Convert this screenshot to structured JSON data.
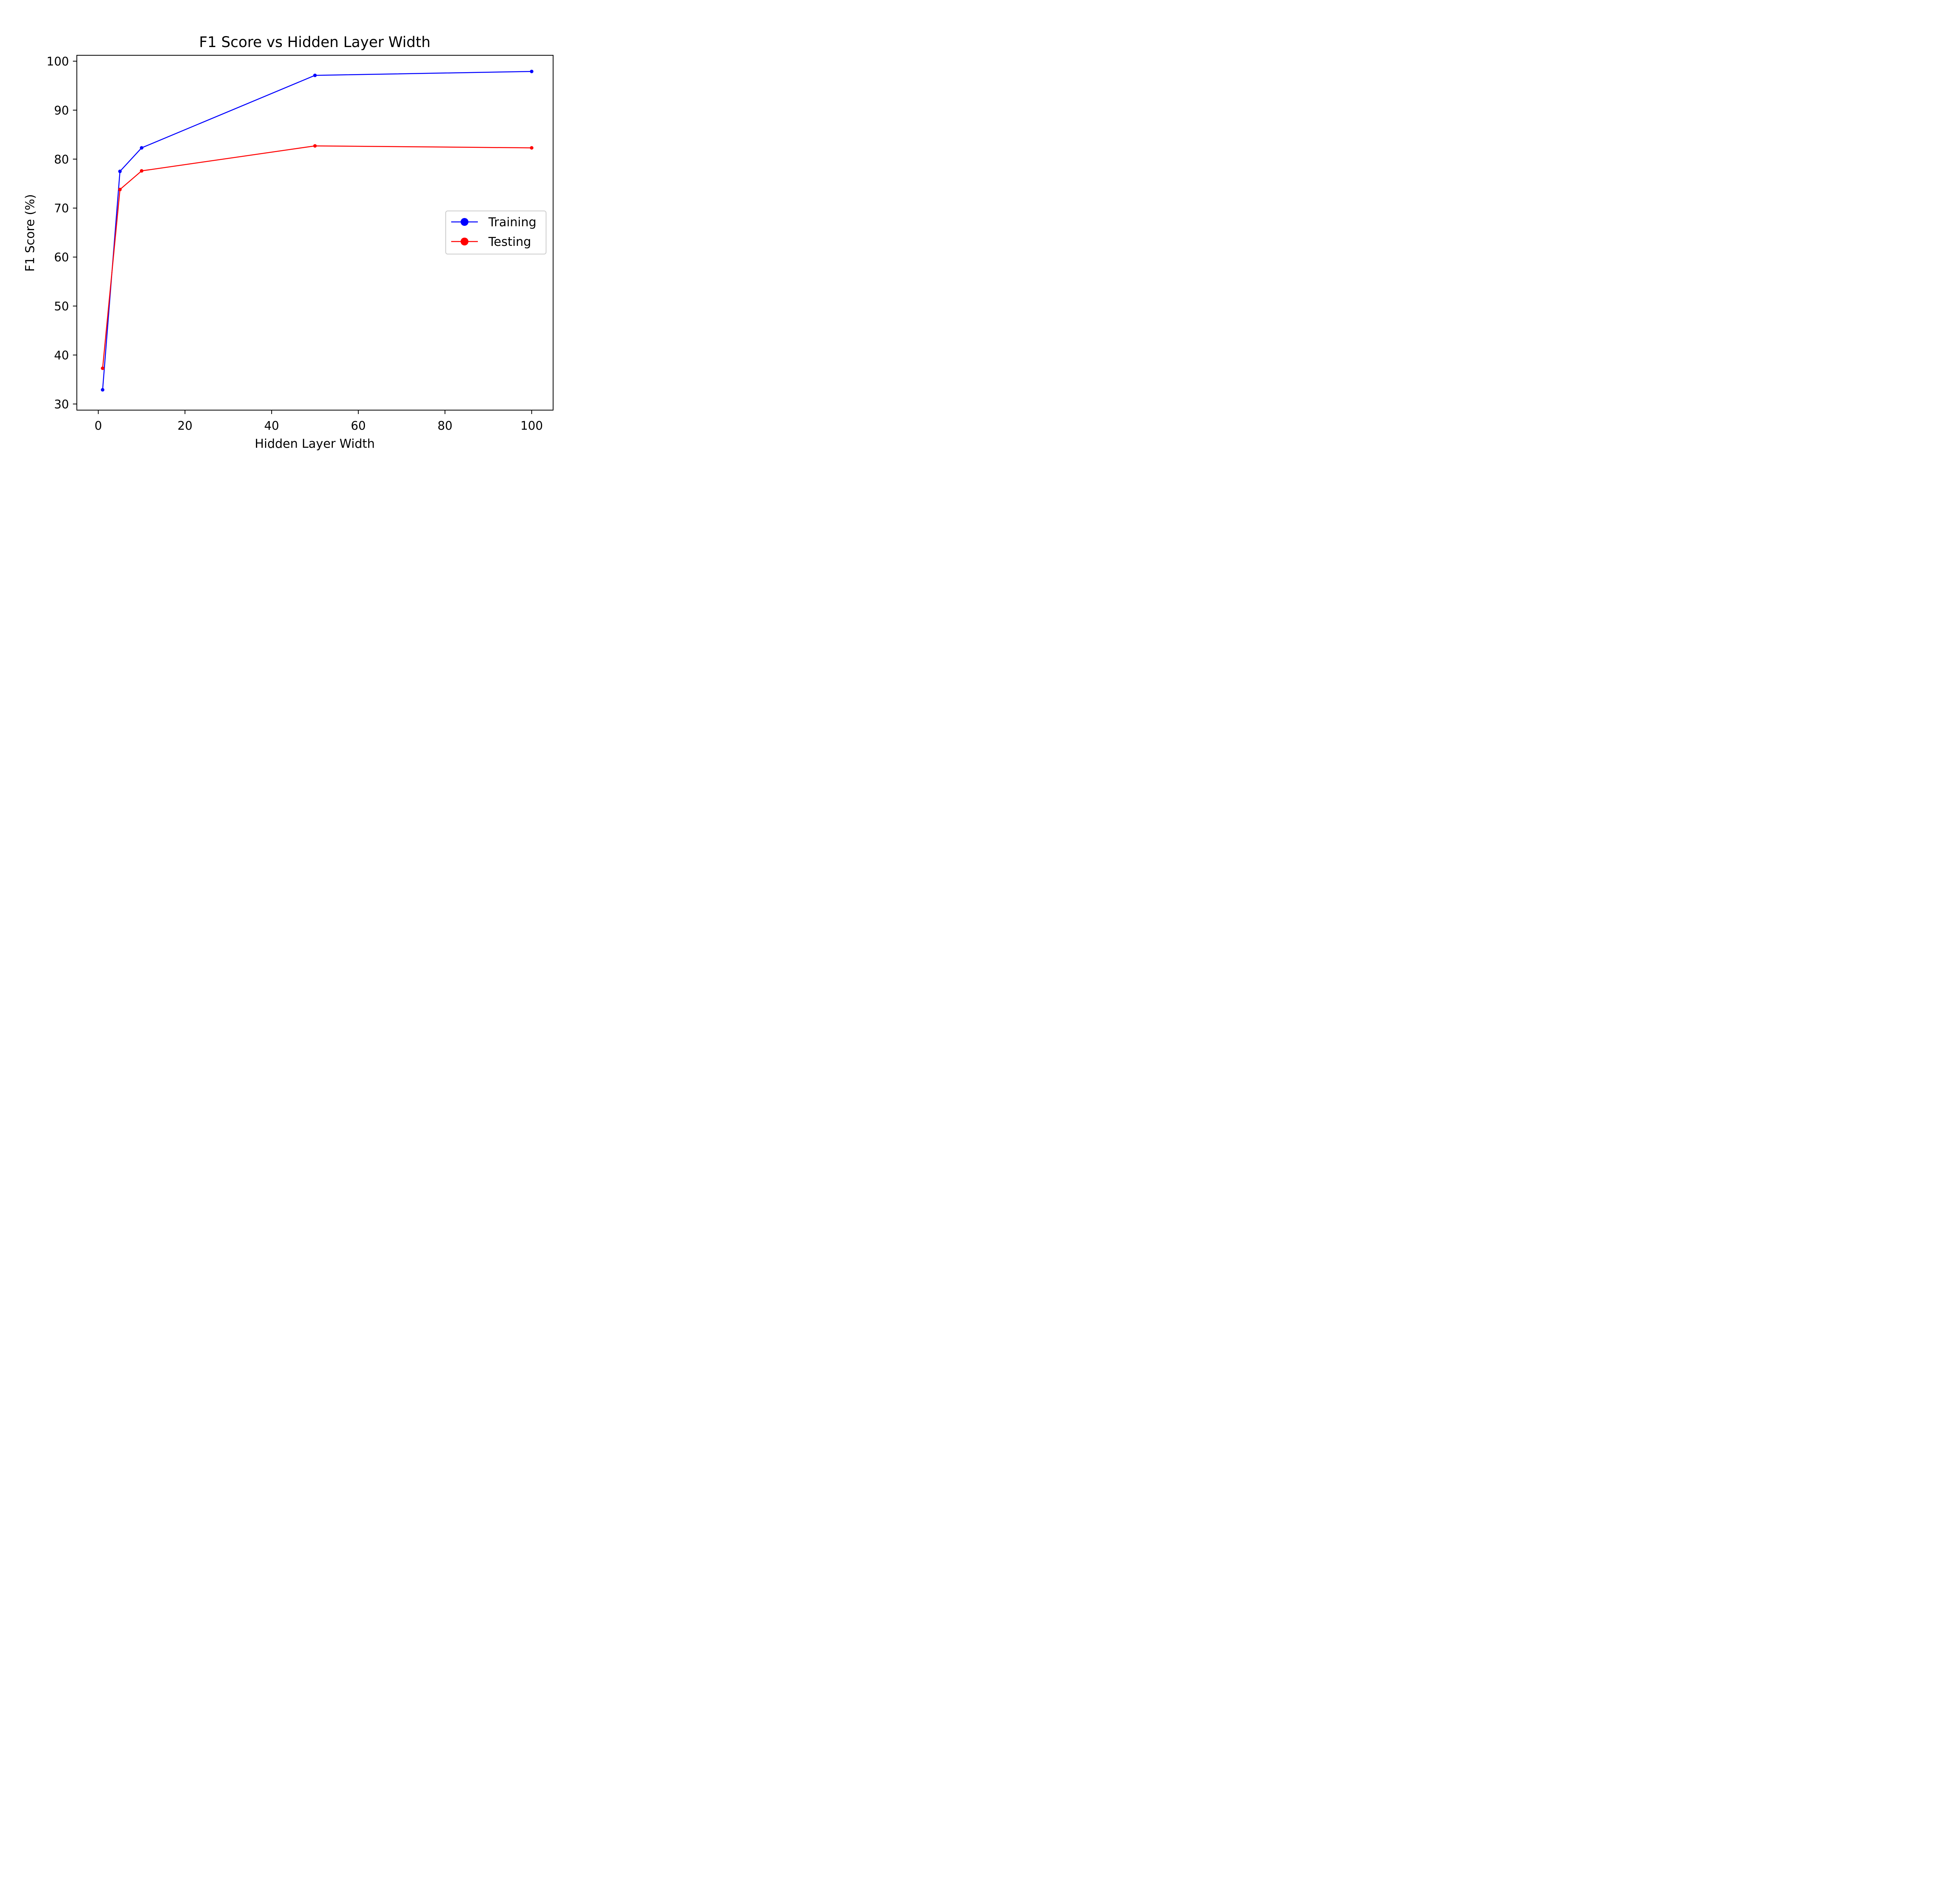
{
  "chart_data": {
    "type": "line",
    "title": "F1 Score vs Hidden Layer Width",
    "xlabel": "Hidden Layer Width",
    "ylabel": "F1 Score (%)",
    "xlim": [
      -4.95,
      104.95
    ],
    "ylim": [
      28.75,
      101.2
    ],
    "xticks": [
      0,
      20,
      40,
      60,
      80,
      100
    ],
    "yticks": [
      30,
      40,
      50,
      60,
      70,
      80,
      90,
      100
    ],
    "grid": false,
    "legend_position": "center-right",
    "x": [
      1,
      5,
      10,
      50,
      100
    ],
    "series": [
      {
        "name": "Training",
        "color": "#0000ff",
        "values": [
          32.9,
          77.5,
          82.3,
          97.1,
          97.9
        ]
      },
      {
        "name": "Testing",
        "color": "#ff0000",
        "values": [
          37.3,
          73.8,
          77.6,
          82.7,
          82.3
        ]
      }
    ]
  }
}
